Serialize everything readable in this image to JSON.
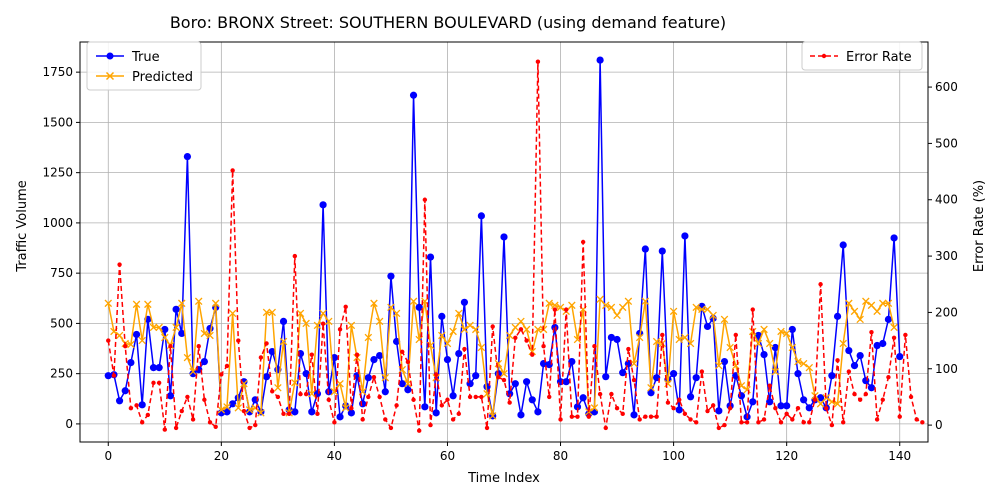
{
  "chart_data": {
    "type": "line",
    "title": "Boro: BRONX Street: SOUTHERN BOULEVARD (using demand feature)",
    "xlabel": "Time Index",
    "ylabel_left": "Traffic Volume",
    "ylabel_right": "Error Rate (%)",
    "xlim": [
      -5,
      145
    ],
    "ylim_left": [
      -90,
      1900
    ],
    "ylim_right": [
      -30,
      680
    ],
    "xticks": [
      "0",
      "20",
      "40",
      "60",
      "80",
      "100",
      "120",
      "140"
    ],
    "yticks_left": [
      "0",
      "250",
      "500",
      "750",
      "1000",
      "1250",
      "1500",
      "1750"
    ],
    "yticks_right": [
      "0",
      "100",
      "200",
      "300",
      "400",
      "500",
      "600"
    ],
    "grid": true,
    "legend_left_position": "upper-left",
    "legend_right_position": "upper-right",
    "colors": {
      "true": "#0000ff",
      "predicted": "#ffa500",
      "error": "#ff0000"
    },
    "series": [
      {
        "name": "True",
        "axis": "left",
        "marker": "circle",
        "values": [
          240,
          245,
          115,
          165,
          305,
          445,
          95,
          520,
          280,
          280,
          470,
          140,
          570,
          450,
          1330,
          250,
          270,
          310,
          475,
          580,
          55,
          60,
          100,
          130,
          210,
          60,
          120,
          60,
          235,
          360,
          270,
          510,
          70,
          60,
          350,
          250,
          60,
          150,
          1090,
          160,
          330,
          35,
          90,
          55,
          240,
          100,
          230,
          320,
          340,
          160,
          735,
          410,
          200,
          170,
          1635,
          580,
          85,
          830,
          55,
          535,
          320,
          140,
          350,
          605,
          200,
          240,
          1035,
          185,
          40,
          250,
          930,
          150,
          200,
          45,
          210,
          120,
          60,
          300,
          295,
          480,
          210,
          210,
          310,
          85,
          130,
          50,
          60,
          1810,
          235,
          430,
          420,
          255,
          300,
          45,
          450,
          870,
          155,
          230,
          860,
          220,
          250,
          70,
          935,
          135,
          230,
          585,
          485,
          525,
          65,
          310,
          90,
          240,
          140,
          35,
          110,
          440,
          345,
          110,
          380,
          90,
          90,
          470,
          250,
          120,
          80,
          120,
          130,
          80,
          240,
          535,
          890,
          365,
          290,
          340,
          215,
          180,
          390,
          400,
          520,
          925,
          335
        ]
      },
      {
        "name": "Predicted",
        "axis": "left",
        "marker": "x",
        "values": [
          600,
          460,
          440,
          400,
          395,
          595,
          415,
          595,
          480,
          480,
          430,
          390,
          480,
          600,
          330,
          260,
          610,
          450,
          440,
          600,
          70,
          85,
          550,
          80,
          200,
          70,
          80,
          55,
          555,
          555,
          180,
          410,
          55,
          205,
          550,
          500,
          150,
          490,
          550,
          510,
          160,
          200,
          80,
          490,
          330,
          160,
          430,
          600,
          510,
          230,
          580,
          550,
          270,
          200,
          610,
          420,
          610,
          390,
          230,
          440,
          400,
          460,
          550,
          470,
          490,
          470,
          380,
          150,
          40,
          300,
          250,
          440,
          480,
          510,
          470,
          360,
          470,
          470,
          600,
          590,
          580,
          560,
          590,
          420,
          570,
          60,
          80,
          620,
          590,
          580,
          540,
          580,
          610,
          300,
          430,
          610,
          180,
          410,
          400,
          200,
          560,
          420,
          430,
          400,
          580,
          570,
          570,
          540,
          290,
          520,
          380,
          290,
          190,
          170,
          460,
          400,
          470,
          400,
          260,
          460,
          450,
          380,
          310,
          300,
          280,
          140,
          100,
          130,
          110,
          100,
          400,
          600,
          560,
          520,
          610,
          590,
          560,
          600,
          600,
          480
        ]
      },
      {
        "name": "Error Rate",
        "axis": "right",
        "marker": "dot",
        "dashed": true,
        "values": [
          150,
          88,
          285,
          140,
          30,
          35,
          5,
          18,
          75,
          75,
          -8,
          140,
          -5,
          25,
          50,
          10,
          140,
          45,
          5,
          -3,
          90,
          105,
          452,
          150,
          25,
          -5,
          0,
          120,
          145,
          60,
          50,
          20,
          20,
          300,
          55,
          55,
          125,
          20,
          180,
          45,
          5,
          170,
          210,
          30,
          125,
          10,
          50,
          85,
          50,
          10,
          -5,
          35,
          130,
          112,
          45,
          -10,
          400,
          0,
          90,
          35,
          45,
          10,
          20,
          135,
          50,
          50,
          50,
          -5,
          175,
          85,
          80,
          40,
          155,
          170,
          150,
          125,
          645,
          140,
          50,
          205,
          10,
          205,
          15,
          15,
          325,
          15,
          140,
          55,
          -5,
          55,
          30,
          20,
          135,
          80,
          10,
          15,
          15,
          15,
          160,
          40,
          30,
          45,
          20,
          10,
          5,
          95,
          25,
          35,
          -5,
          0,
          30,
          160,
          5,
          5,
          205,
          5,
          10,
          70,
          30,
          5,
          20,
          10,
          30,
          5,
          5,
          45,
          250,
          30,
          0,
          115,
          5,
          95,
          55,
          45,
          55,
          165,
          10,
          45,
          85,
          155,
          15,
          160,
          50,
          10,
          5
        ]
      }
    ]
  }
}
